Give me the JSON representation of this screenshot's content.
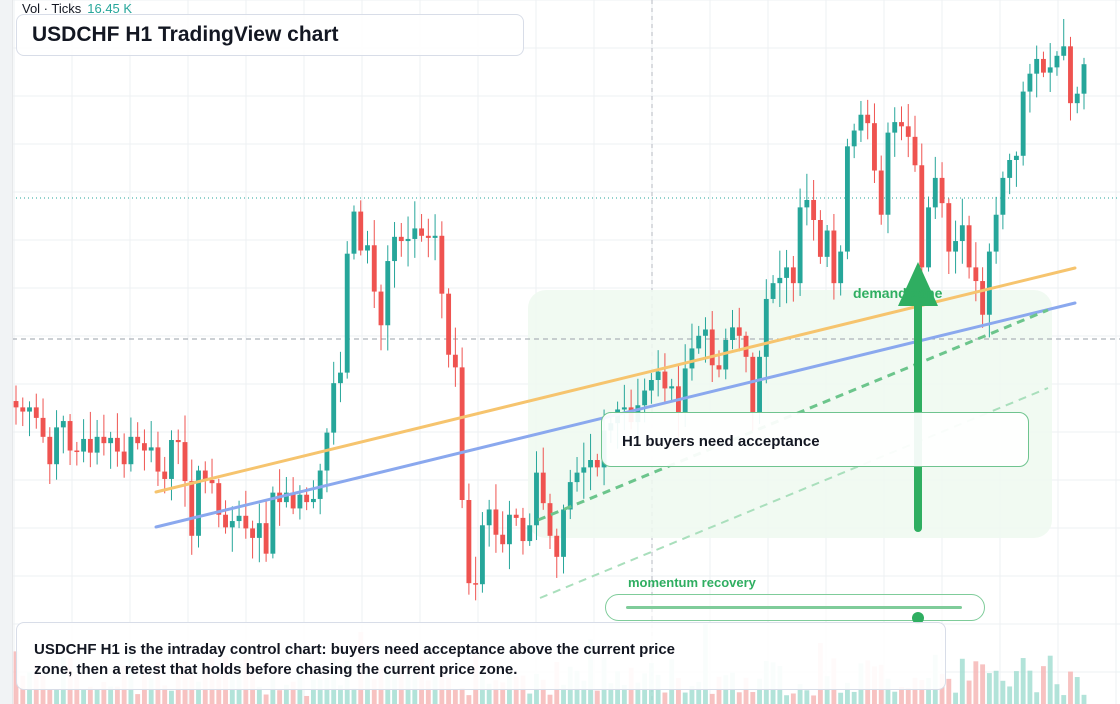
{
  "header": {
    "vol_label": "Vol · Ticks",
    "vol_value": "16.45 K"
  },
  "title": "USDCHF H1 TradingView chart",
  "callout": "H1 buyers need acceptance",
  "zone_label": "demand zone",
  "momentum": {
    "label": "momentum recovery",
    "level": 0.87
  },
  "summary": "USDCHF H1 is the intraday control chart: buyers need acceptance above the current price zone, then a retest that holds before chasing the current price zone.",
  "colors": {
    "up": "#26a69a",
    "down": "#ef5350",
    "orange_trend": "#f6c46e",
    "blue_trend": "#8aa8ee",
    "accent": "#2fae61",
    "zone_fill": "#eef9f0"
  },
  "chart_data": {
    "type": "candlestick",
    "symbol": "USDCHF",
    "timeframe": "H1",
    "y_axis": "price (relative units, no labels visible)",
    "closes": [
      6620,
      6580,
      6620,
      6520,
      6340,
      6080,
      6430,
      6490,
      6210,
      6200,
      6320,
      6190,
      6340,
      6280,
      6330,
      6200,
      6080,
      6340,
      6280,
      6210,
      6240,
      6010,
      5940,
      6310,
      6290,
      5920,
      5400,
      6020,
      5930,
      5900,
      5600,
      5480,
      5540,
      5590,
      5470,
      5380,
      5520,
      5230,
      5810,
      5720,
      5810,
      5660,
      5790,
      5720,
      5750,
      6020,
      6380,
      6850,
      6950,
      8080,
      8480,
      8110,
      8160,
      7720,
      7400,
      8010,
      8240,
      8200,
      8220,
      8320,
      8250,
      8230,
      8250,
      7700,
      7120,
      7000,
      5740,
      4950,
      4940,
      5500,
      5650,
      5410,
      5320,
      5600,
      5570,
      5350,
      5500,
      6000,
      5710,
      5400,
      5200,
      5650,
      5910,
      6000,
      6050,
      6120,
      6050,
      6400,
      6470,
      6600,
      6620,
      6480,
      6640,
      6780,
      6880,
      6960,
      6800,
      6820,
      6570,
      6990,
      7180,
      7300,
      7360,
      7020,
      6980,
      7260,
      7380,
      7300,
      7100,
      6570,
      7100,
      7650,
      7800,
      7850,
      7950,
      7800,
      8520,
      8590,
      8400,
      8050,
      8300,
      7800,
      8100,
      9100,
      9250,
      9400,
      9320,
      8870,
      8450,
      9230,
      9330,
      9290,
      9190,
      8920,
      7950,
      8520,
      8800,
      8560,
      8100,
      8200,
      8350,
      7950,
      7820,
      7500,
      8100,
      8450,
      8800,
      8970,
      9010,
      9620,
      9790,
      9930,
      9800,
      9850,
      9960,
      10050,
      9510,
      9600,
      9880
    ],
    "overlays": {
      "orange_trendline": "rising",
      "blue_trendline": "rising",
      "green_trendlines": [
        "dashed",
        "dashed"
      ],
      "horizontal_levels": [
        "dotted level",
        "dashed level"
      ],
      "demand_zone": "shaded",
      "arrow": "up"
    }
  }
}
